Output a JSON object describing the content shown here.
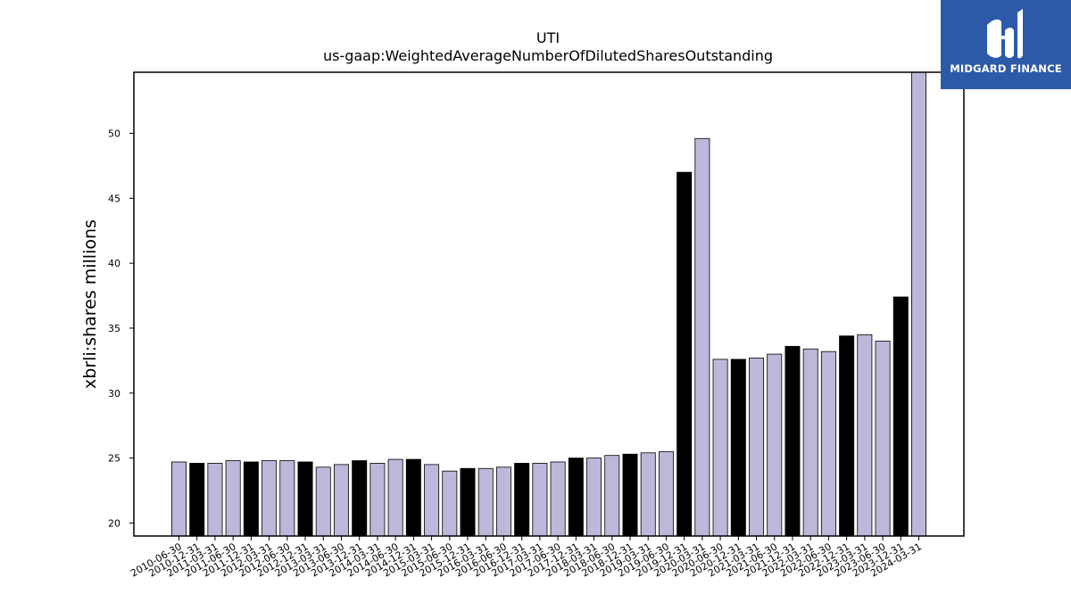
{
  "brand": {
    "name": "MIDGARD FINANCE",
    "color": "#2d5aa8"
  },
  "chart_data": {
    "type": "bar",
    "title": "UTI",
    "subtitle": "us-gaap:WeightedAverageNumberOfDilutedSharesOutstanding",
    "xlabel": "",
    "ylabel": "xbrli:shares millions",
    "ylim": [
      19,
      54.7
    ],
    "yticks": [
      20,
      25,
      30,
      35,
      40,
      45,
      50
    ],
    "grid": false,
    "colors": {
      "light": "#bcb8d9",
      "dark": "#000000"
    },
    "categories": [
      "2010-06-30",
      "2010-12-31",
      "2011-03-31",
      "2011-06-30",
      "2011-12-31",
      "2012-03-31",
      "2012-06-30",
      "2012-12-31",
      "2013-03-31",
      "2013-06-30",
      "2013-12-31",
      "2014-03-31",
      "2014-06-30",
      "2014-12-31",
      "2015-03-31",
      "2015-06-30",
      "2015-12-31",
      "2016-03-31",
      "2016-06-30",
      "2016-12-31",
      "2017-03-31",
      "2017-06-30",
      "2017-12-31",
      "2018-03-31",
      "2018-06-30",
      "2018-12-31",
      "2019-03-31",
      "2019-06-30",
      "2019-12-31",
      "2020-03-31",
      "2020-06-30",
      "2020-12-31",
      "2021-03-31",
      "2021-06-30",
      "2021-12-31",
      "2022-03-31",
      "2022-06-30",
      "2022-12-31",
      "2023-03-31",
      "2023-06-30",
      "2023-12-31",
      "2024-03-31"
    ],
    "values": [
      24.7,
      24.6,
      24.6,
      24.8,
      24.7,
      24.8,
      24.8,
      24.7,
      24.3,
      24.5,
      24.8,
      24.6,
      24.9,
      24.9,
      24.5,
      24.0,
      24.2,
      24.2,
      24.3,
      24.6,
      24.6,
      24.7,
      25.0,
      25.0,
      25.2,
      25.3,
      25.4,
      25.5,
      47.0,
      49.6,
      32.6,
      32.6,
      32.7,
      33.0,
      33.6,
      33.4,
      33.2,
      34.4,
      34.5,
      34.0,
      37.4,
      54.8
    ],
    "bar_styles": [
      "light",
      "dark",
      "light",
      "light",
      "dark",
      "light",
      "light",
      "dark",
      "light",
      "light",
      "dark",
      "light",
      "light",
      "dark",
      "light",
      "light",
      "dark",
      "light",
      "light",
      "dark",
      "light",
      "light",
      "dark",
      "light",
      "light",
      "dark",
      "light",
      "light",
      "dark",
      "light",
      "light",
      "dark",
      "light",
      "light",
      "dark",
      "light",
      "light",
      "dark",
      "light",
      "light",
      "dark",
      "light"
    ]
  }
}
